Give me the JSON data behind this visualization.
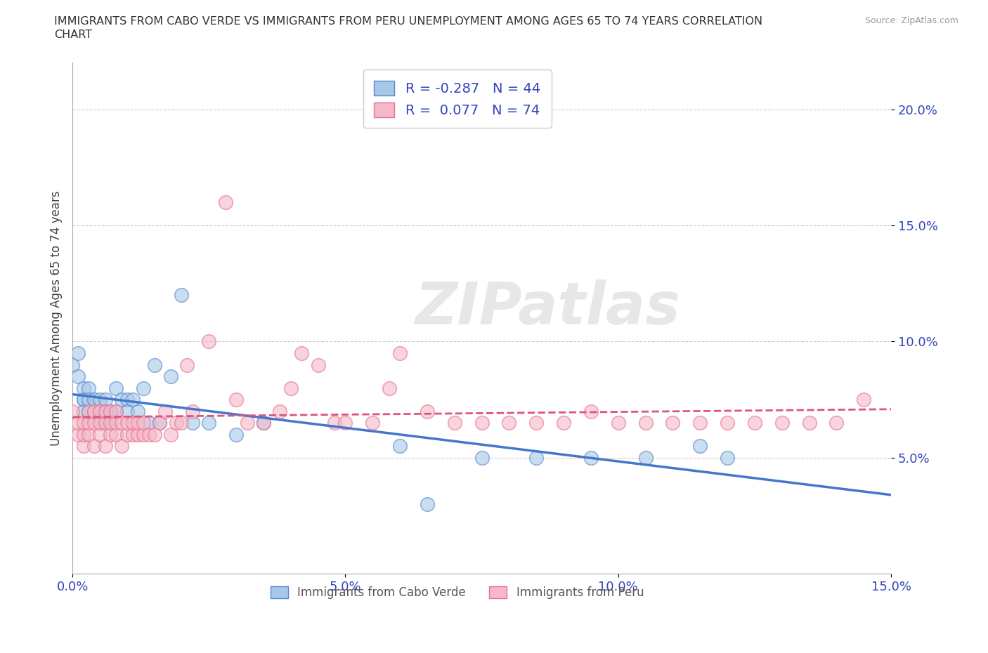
{
  "title_line1": "IMMIGRANTS FROM CABO VERDE VS IMMIGRANTS FROM PERU UNEMPLOYMENT AMONG AGES 65 TO 74 YEARS CORRELATION",
  "title_line2": "CHART",
  "source": "Source: ZipAtlas.com",
  "ylabel_label": "Unemployment Among Ages 65 to 74 years",
  "xlim": [
    0.0,
    0.15
  ],
  "ylim": [
    0.0,
    0.22
  ],
  "xticks": [
    0.0,
    0.05,
    0.1,
    0.15
  ],
  "xtick_labels": [
    "0.0%",
    "5.0%",
    "10.0%",
    "15.0%"
  ],
  "yticks": [
    0.05,
    0.1,
    0.15,
    0.2
  ],
  "ytick_labels": [
    "5.0%",
    "10.0%",
    "15.0%",
    "20.0%"
  ],
  "color_blue": "#a8c8e8",
  "color_pink": "#f4b8c8",
  "edge_blue": "#5588cc",
  "edge_pink": "#e87090",
  "line_blue": "#4477cc",
  "line_pink": "#dd5577",
  "R_blue": -0.287,
  "N_blue": 44,
  "R_pink": 0.077,
  "N_pink": 74,
  "legend_label_blue": "Immigrants from Cabo Verde",
  "legend_label_pink": "Immigrants from Peru",
  "watermark": "ZIPatlas",
  "cabo_verde_x": [
    0.0,
    0.001,
    0.001,
    0.002,
    0.002,
    0.002,
    0.002,
    0.003,
    0.003,
    0.003,
    0.004,
    0.004,
    0.005,
    0.005,
    0.005,
    0.006,
    0.006,
    0.007,
    0.007,
    0.008,
    0.008,
    0.009,
    0.01,
    0.01,
    0.011,
    0.012,
    0.013,
    0.014,
    0.015,
    0.016,
    0.018,
    0.02,
    0.022,
    0.025,
    0.03,
    0.035,
    0.06,
    0.065,
    0.075,
    0.085,
    0.095,
    0.105,
    0.115,
    0.12
  ],
  "cabo_verde_y": [
    0.09,
    0.095,
    0.085,
    0.075,
    0.08,
    0.075,
    0.07,
    0.07,
    0.08,
    0.075,
    0.07,
    0.075,
    0.065,
    0.07,
    0.075,
    0.075,
    0.07,
    0.07,
    0.065,
    0.08,
    0.07,
    0.075,
    0.075,
    0.07,
    0.075,
    0.07,
    0.08,
    0.065,
    0.09,
    0.065,
    0.085,
    0.12,
    0.065,
    0.065,
    0.06,
    0.065,
    0.055,
    0.03,
    0.05,
    0.05,
    0.05,
    0.05,
    0.055,
    0.05
  ],
  "peru_x": [
    0.0,
    0.001,
    0.001,
    0.002,
    0.002,
    0.002,
    0.003,
    0.003,
    0.003,
    0.004,
    0.004,
    0.004,
    0.005,
    0.005,
    0.005,
    0.006,
    0.006,
    0.006,
    0.007,
    0.007,
    0.007,
    0.008,
    0.008,
    0.008,
    0.009,
    0.009,
    0.01,
    0.01,
    0.011,
    0.011,
    0.012,
    0.012,
    0.013,
    0.013,
    0.014,
    0.015,
    0.016,
    0.017,
    0.018,
    0.019,
    0.02,
    0.021,
    0.022,
    0.025,
    0.028,
    0.03,
    0.032,
    0.035,
    0.038,
    0.04,
    0.042,
    0.045,
    0.048,
    0.05,
    0.055,
    0.058,
    0.06,
    0.065,
    0.07,
    0.075,
    0.08,
    0.085,
    0.09,
    0.095,
    0.1,
    0.105,
    0.11,
    0.115,
    0.12,
    0.125,
    0.13,
    0.135,
    0.14,
    0.145
  ],
  "peru_y": [
    0.07,
    0.06,
    0.065,
    0.055,
    0.06,
    0.065,
    0.06,
    0.065,
    0.07,
    0.055,
    0.065,
    0.07,
    0.06,
    0.065,
    0.07,
    0.055,
    0.065,
    0.07,
    0.06,
    0.065,
    0.07,
    0.06,
    0.065,
    0.07,
    0.055,
    0.065,
    0.06,
    0.065,
    0.06,
    0.065,
    0.06,
    0.065,
    0.06,
    0.065,
    0.06,
    0.06,
    0.065,
    0.07,
    0.06,
    0.065,
    0.065,
    0.09,
    0.07,
    0.1,
    0.16,
    0.075,
    0.065,
    0.065,
    0.07,
    0.08,
    0.095,
    0.09,
    0.065,
    0.065,
    0.065,
    0.08,
    0.095,
    0.07,
    0.065,
    0.065,
    0.065,
    0.065,
    0.065,
    0.07,
    0.065,
    0.065,
    0.065,
    0.065,
    0.065,
    0.065,
    0.065,
    0.065,
    0.065,
    0.075
  ]
}
